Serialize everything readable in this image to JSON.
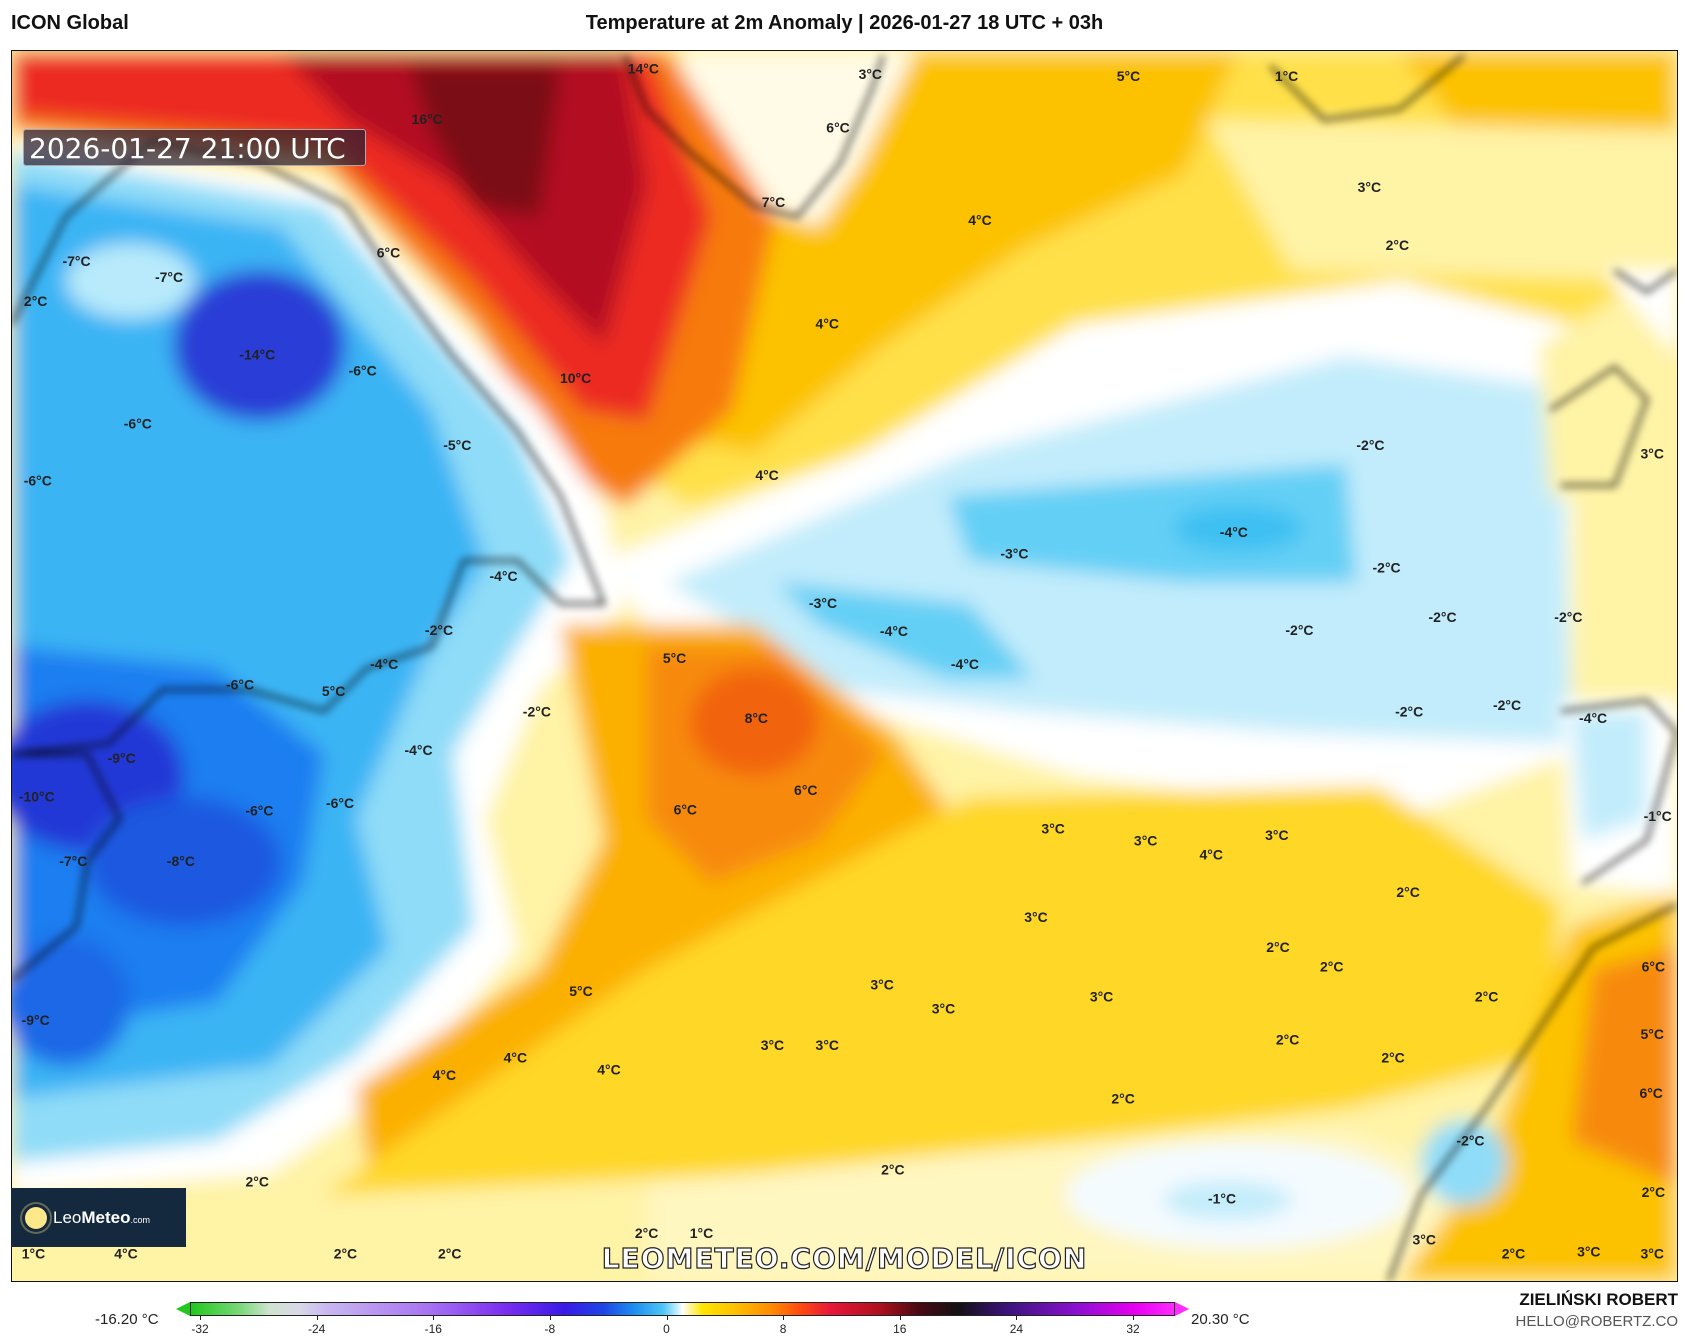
{
  "header": {
    "model": "ICON Global",
    "title": "Temperature at 2m Anomaly | 2026-01-27 18 UTC + 03h"
  },
  "map": {
    "valid_time": "2026-01-27 21:00 UTC",
    "watermark": "LEOMETEO.COM/MODEL/ICON",
    "labels": [
      "16°C",
      "14°C",
      "3°C",
      "6°C",
      "7°C",
      "5°C",
      "1°C",
      "3°C",
      "2°C",
      "4°C",
      "4°C",
      "10°C",
      "4°C",
      "6°C",
      "-7°C",
      "-7°C",
      "2°C",
      "-14°C",
      "-6°C",
      "-6°C",
      "-5°C",
      "-6°C",
      "-4°C",
      "-2°C",
      "-4°C",
      "-6°C",
      "5°C",
      "-2°C",
      "-4°C",
      "-9°C",
      "-10°C",
      "-6°C",
      "-6°C",
      "-7°C",
      "-8°C",
      "-9°C",
      "5°C",
      "8°C",
      "6°C",
      "6°C",
      "-3°C",
      "-4°C",
      "-4°C",
      "-3°C",
      "-4°C",
      "-2°C",
      "-2°C",
      "-2°C",
      "-2°C",
      "-2°C",
      "-2°C",
      "-2°C",
      "3°C",
      "-4°C",
      "-1°C",
      "3°C",
      "3°C",
      "4°C",
      "3°C",
      "2°C",
      "3°C",
      "2°C",
      "2°C",
      "3°C",
      "3°C",
      "3°C",
      "2°C",
      "6°C",
      "5°C",
      "6°C",
      "2°C",
      "2°C",
      "5°C",
      "4°C",
      "4°C",
      "4°C",
      "3°C",
      "3°C",
      "2°C",
      "-2°C",
      "2°C",
      "-1°C",
      "2°C",
      "2°C",
      "1°C",
      "2°C",
      "2°C",
      "4°C",
      "1°C",
      "2°C",
      "3°C",
      "2°C",
      "3°C",
      "3°C"
    ]
  },
  "logo": {
    "name_light": "Leo",
    "name_bold": "Meteo",
    "suffix": ".com"
  },
  "colorbar": {
    "min_label": "-16.20 °C",
    "max_label": "20.30 °C",
    "ticks": [
      "-32",
      "-24",
      "-16",
      "-8",
      "0",
      "8",
      "16",
      "24",
      "32"
    ],
    "range": [
      -32,
      32
    ]
  },
  "credits": {
    "author": "ZIELIŃSKI ROBERT",
    "email": "HELLO@ROBERTZ.CO"
  }
}
